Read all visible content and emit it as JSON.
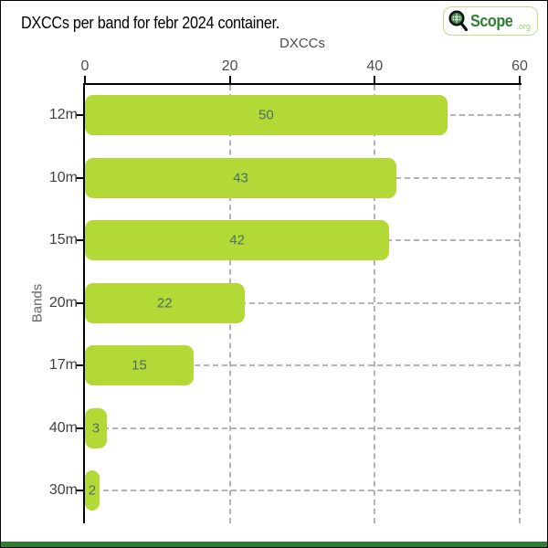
{
  "title": "DXCCs per band for febr 2024 container.",
  "logo": {
    "brand": "Scope",
    "tld": ".org",
    "icon": "magnifier-globe-icon",
    "border_color": "#bfdc8f",
    "brand_color": "#2e7d32",
    "tld_color": "#9ccc65"
  },
  "chart_data": {
    "type": "bar",
    "orientation": "horizontal",
    "title": "DXCCs per band for febr 2024 container.",
    "xlabel": "DXCCs",
    "ylabel": "Bands",
    "categories": [
      "12m",
      "10m",
      "15m",
      "20m",
      "17m",
      "40m",
      "30m"
    ],
    "values": [
      50,
      43,
      42,
      22,
      15,
      3,
      2
    ],
    "xlim": [
      0,
      60
    ],
    "xticks": [
      0,
      20,
      40,
      60
    ],
    "xaxis_position": "top",
    "grid": "dashed",
    "bar_color": "#b2d936",
    "value_label_color": "#4d6e62",
    "gridline_color": "#b3b3b3"
  },
  "footer": {
    "color": "#2e7d32"
  }
}
